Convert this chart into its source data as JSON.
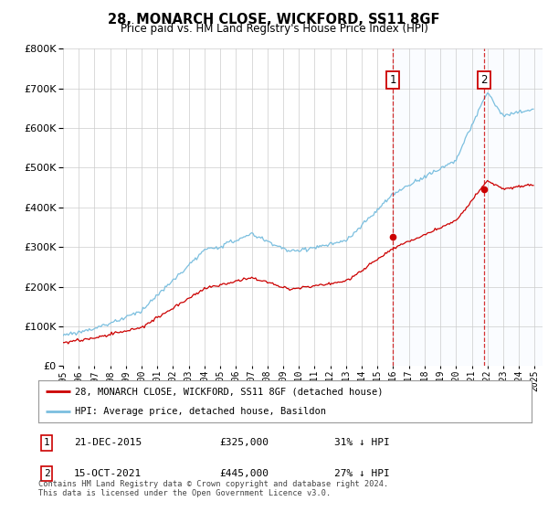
{
  "title": "28, MONARCH CLOSE, WICKFORD, SS11 8GF",
  "subtitle": "Price paid vs. HM Land Registry's House Price Index (HPI)",
  "legend_line1": "28, MONARCH CLOSE, WICKFORD, SS11 8GF (detached house)",
  "legend_line2": "HPI: Average price, detached house, Basildon",
  "annotation1_date": "21-DEC-2015",
  "annotation1_price": "£325,000",
  "annotation1_hpi": "31% ↓ HPI",
  "annotation1_year": 2015.97,
  "annotation1_value": 325000,
  "annotation2_date": "15-OCT-2021",
  "annotation2_price": "£445,000",
  "annotation2_hpi": "27% ↓ HPI",
  "annotation2_year": 2021.79,
  "annotation2_value": 445000,
  "footnote": "Contains HM Land Registry data © Crown copyright and database right 2024.\nThis data is licensed under the Open Government Licence v3.0.",
  "hpi_color": "#7bbfdf",
  "price_color": "#cc0000",
  "marker_color": "#cc0000",
  "annotation_line_color": "#cc0000",
  "background_color": "#ffffff",
  "grid_color": "#cccccc",
  "shade_color": "#ddeeff",
  "ylim": [
    0,
    800000
  ],
  "xlim_start": 1995.0,
  "xlim_end": 2025.5
}
